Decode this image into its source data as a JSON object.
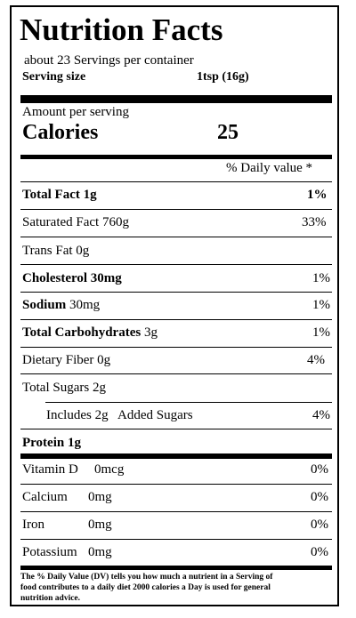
{
  "label": {
    "title": "Nutrition Facts",
    "servings_per_container": "about 23 Servings per container",
    "serving_size_label": "Serving size",
    "serving_size_value": "1tsp  (16g)",
    "amount_per_serving": "Amount per serving",
    "calories_label": "Calories",
    "calories_value": "25",
    "daily_value_header": "% Daily value *"
  },
  "nutrients": [
    {
      "name": "Total Fact 1g",
      "dv": "1%",
      "bold": true
    },
    {
      "name": "Saturated Fact 760g",
      "dv": "33%",
      "bold": false
    },
    {
      "name": "Trans Fat 0g",
      "dv": "",
      "bold": false
    },
    {
      "name": "Cholesterol  30mg",
      "dv": "1%",
      "bold": true
    },
    {
      "name_bold": "Sodium",
      "name_rest": " 30mg",
      "dv": "1%",
      "bold": false
    },
    {
      "name_bold": "Total  Carbohydrates",
      "name_rest": " 3g",
      "dv": "1%",
      "bold": false
    },
    {
      "name": "Dietary Fiber 0g",
      "dv": "4%",
      "bold": false
    },
    {
      "name": "Total Sugars 2g",
      "dv": "",
      "bold": false
    },
    {
      "name": "Includes 2g   Added Sugars",
      "dv": "4%",
      "bold": false
    },
    {
      "name": "Protein 1g",
      "dv": "",
      "bold": true
    }
  ],
  "vitamins": [
    {
      "name": "Vitamin D",
      "amount": "0mcg",
      "dv": "0%"
    },
    {
      "name": "Calcium",
      "amount": "0mg",
      "dv": "0%"
    },
    {
      "name": "Iron",
      "amount": "0mg",
      "dv": "0%"
    },
    {
      "name": "Potassium",
      "amount": "0mg",
      "dv": "0%"
    }
  ],
  "footnote": "The % Daily Value (DV) tells you how much a nutrient in a Serving of food contributes to a daily diet 2000 calories a Day is used for general nutrition advice."
}
